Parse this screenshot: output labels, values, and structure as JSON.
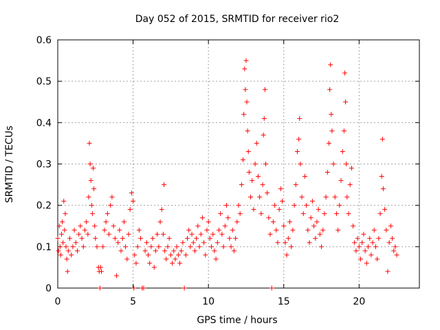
{
  "chart_data": {
    "type": "scatter",
    "title": "Day 052 of 2015, SRMTID for receiver rio2",
    "xlabel": "GPS time / hours",
    "ylabel": "SRMTID / TECUs",
    "xlim": [
      0,
      24
    ],
    "ylim": [
      0,
      0.6
    ],
    "x_ticks": [
      0,
      5,
      10,
      15,
      20
    ],
    "y_ticks": [
      0,
      0.1,
      0.2,
      0.3,
      0.4,
      0.5,
      0.6
    ],
    "x_tick_labels": [
      "0",
      "5",
      "10",
      "15",
      "20"
    ],
    "y_tick_labels": [
      "0",
      "0.1",
      "0.2",
      "0.3",
      "0.4",
      "0.5",
      "0.6"
    ],
    "grid": true,
    "marker": "+",
    "color": "#ff0000",
    "series": [
      {
        "name": "SRMTID",
        "points": [
          [
            0.0,
            0.12
          ],
          [
            0.05,
            0.09
          ],
          [
            0.1,
            0.15
          ],
          [
            0.15,
            0.1
          ],
          [
            0.2,
            0.08
          ],
          [
            0.25,
            0.13
          ],
          [
            0.3,
            0.16
          ],
          [
            0.35,
            0.11
          ],
          [
            0.4,
            0.21
          ],
          [
            0.45,
            0.14
          ],
          [
            0.5,
            0.18
          ],
          [
            0.55,
            0.1
          ],
          [
            0.6,
            0.07
          ],
          [
            0.65,
            0.04
          ],
          [
            0.7,
            0.09
          ],
          [
            0.8,
            0.12
          ],
          [
            0.9,
            0.08
          ],
          [
            1.0,
            0.1
          ],
          [
            1.1,
            0.14
          ],
          [
            1.2,
            0.11
          ],
          [
            1.3,
            0.09
          ],
          [
            1.4,
            0.13
          ],
          [
            1.5,
            0.15
          ],
          [
            1.6,
            0.12
          ],
          [
            1.7,
            0.1
          ],
          [
            1.8,
            0.14
          ],
          [
            1.9,
            0.16
          ],
          [
            2.0,
            0.13
          ],
          [
            2.05,
            0.22
          ],
          [
            2.1,
            0.35
          ],
          [
            2.15,
            0.3
          ],
          [
            2.2,
            0.26
          ],
          [
            2.25,
            0.2
          ],
          [
            2.3,
            0.18
          ],
          [
            2.35,
            0.29
          ],
          [
            2.4,
            0.24
          ],
          [
            2.45,
            0.15
          ],
          [
            2.5,
            0.12
          ],
          [
            2.6,
            0.1
          ],
          [
            2.7,
            0.05
          ],
          [
            2.75,
            0.04
          ],
          [
            2.8,
            0.0
          ],
          [
            2.85,
            0.05
          ],
          [
            2.9,
            0.04
          ],
          [
            3.0,
            0.1
          ],
          [
            3.1,
            0.14
          ],
          [
            3.2,
            0.16
          ],
          [
            3.3,
            0.18
          ],
          [
            3.4,
            0.13
          ],
          [
            3.5,
            0.2
          ],
          [
            3.6,
            0.22
          ],
          [
            3.7,
            0.15
          ],
          [
            3.8,
            0.12
          ],
          [
            3.9,
            0.03
          ],
          [
            4.0,
            0.11
          ],
          [
            4.1,
            0.14
          ],
          [
            4.2,
            0.09
          ],
          [
            4.3,
            0.12
          ],
          [
            4.4,
            0.16
          ],
          [
            4.5,
            0.1
          ],
          [
            4.6,
            0.07
          ],
          [
            4.7,
            0.13
          ],
          [
            4.8,
            0.19
          ],
          [
            4.9,
            0.23
          ],
          [
            5.0,
            0.21
          ],
          [
            5.05,
            0.0
          ],
          [
            5.1,
            0.08
          ],
          [
            5.2,
            0.06
          ],
          [
            5.3,
            0.1
          ],
          [
            5.4,
            0.14
          ],
          [
            5.5,
            0.12
          ],
          [
            5.6,
            0.0
          ],
          [
            5.7,
            0.0
          ],
          [
            5.8,
            0.09
          ],
          [
            5.9,
            0.11
          ],
          [
            6.0,
            0.08
          ],
          [
            6.1,
            0.06
          ],
          [
            6.2,
            0.1
          ],
          [
            6.3,
            0.12
          ],
          [
            6.4,
            0.05
          ],
          [
            6.5,
            0.09
          ],
          [
            6.6,
            0.13
          ],
          [
            6.7,
            0.1
          ],
          [
            6.8,
            0.16
          ],
          [
            6.9,
            0.19
          ],
          [
            7.0,
            0.13
          ],
          [
            7.05,
            0.25
          ],
          [
            7.1,
            0.09
          ],
          [
            7.2,
            0.07
          ],
          [
            7.3,
            0.1
          ],
          [
            7.4,
            0.12
          ],
          [
            7.5,
            0.08
          ],
          [
            7.6,
            0.06
          ],
          [
            7.7,
            0.09
          ],
          [
            7.8,
            0.07
          ],
          [
            7.9,
            0.1
          ],
          [
            8.0,
            0.08
          ],
          [
            8.1,
            0.06
          ],
          [
            8.2,
            0.09
          ],
          [
            8.3,
            0.11
          ],
          [
            8.4,
            0.0
          ],
          [
            8.5,
            0.08
          ],
          [
            8.6,
            0.12
          ],
          [
            8.7,
            0.14
          ],
          [
            8.8,
            0.1
          ],
          [
            8.9,
            0.13
          ],
          [
            9.0,
            0.11
          ],
          [
            9.1,
            0.09
          ],
          [
            9.2,
            0.12
          ],
          [
            9.3,
            0.15
          ],
          [
            9.4,
            0.1
          ],
          [
            9.5,
            0.13
          ],
          [
            9.6,
            0.17
          ],
          [
            9.7,
            0.11
          ],
          [
            9.8,
            0.08
          ],
          [
            9.9,
            0.14
          ],
          [
            10.0,
            0.16
          ],
          [
            10.1,
            0.12
          ],
          [
            10.2,
            0.1
          ],
          [
            10.3,
            0.13
          ],
          [
            10.4,
            0.09
          ],
          [
            10.5,
            0.07
          ],
          [
            10.6,
            0.11
          ],
          [
            10.7,
            0.14
          ],
          [
            10.8,
            0.18
          ],
          [
            10.9,
            0.13
          ],
          [
            11.0,
            0.1
          ],
          [
            11.1,
            0.15
          ],
          [
            11.2,
            0.2
          ],
          [
            11.3,
            0.17
          ],
          [
            11.4,
            0.12
          ],
          [
            11.5,
            0.1
          ],
          [
            11.6,
            0.14
          ],
          [
            11.7,
            0.09
          ],
          [
            11.8,
            0.12
          ],
          [
            11.9,
            0.16
          ],
          [
            12.0,
            0.2
          ],
          [
            12.1,
            0.18
          ],
          [
            12.2,
            0.25
          ],
          [
            12.3,
            0.31
          ],
          [
            12.35,
            0.42
          ],
          [
            12.4,
            0.53
          ],
          [
            12.45,
            0.48
          ],
          [
            12.5,
            0.55
          ],
          [
            12.55,
            0.45
          ],
          [
            12.6,
            0.38
          ],
          [
            12.65,
            0.33
          ],
          [
            12.7,
            0.28
          ],
          [
            12.8,
            0.22
          ],
          [
            12.9,
            0.26
          ],
          [
            13.0,
            0.19
          ],
          [
            13.1,
            0.3
          ],
          [
            13.2,
            0.35
          ],
          [
            13.3,
            0.27
          ],
          [
            13.4,
            0.22
          ],
          [
            13.5,
            0.18
          ],
          [
            13.6,
            0.25
          ],
          [
            13.65,
            0.37
          ],
          [
            13.7,
            0.41
          ],
          [
            13.75,
            0.48
          ],
          [
            13.8,
            0.3
          ],
          [
            13.9,
            0.23
          ],
          [
            14.0,
            0.17
          ],
          [
            14.1,
            0.13
          ],
          [
            14.2,
            0.0
          ],
          [
            14.3,
            0.16
          ],
          [
            14.4,
            0.2
          ],
          [
            14.5,
            0.14
          ],
          [
            14.6,
            0.11
          ],
          [
            14.7,
            0.19
          ],
          [
            14.8,
            0.24
          ],
          [
            14.9,
            0.21
          ],
          [
            15.0,
            0.15
          ],
          [
            15.1,
            0.11
          ],
          [
            15.2,
            0.08
          ],
          [
            15.3,
            0.12
          ],
          [
            15.4,
            0.16
          ],
          [
            15.5,
            0.1
          ],
          [
            15.6,
            0.14
          ],
          [
            15.7,
            0.2
          ],
          [
            15.8,
            0.25
          ],
          [
            15.9,
            0.33
          ],
          [
            16.0,
            0.36
          ],
          [
            16.05,
            0.41
          ],
          [
            16.1,
            0.3
          ],
          [
            16.2,
            0.22
          ],
          [
            16.3,
            0.18
          ],
          [
            16.4,
            0.27
          ],
          [
            16.5,
            0.2
          ],
          [
            16.6,
            0.14
          ],
          [
            16.7,
            0.11
          ],
          [
            16.8,
            0.17
          ],
          [
            16.9,
            0.21
          ],
          [
            17.0,
            0.15
          ],
          [
            17.1,
            0.12
          ],
          [
            17.2,
            0.16
          ],
          [
            17.3,
            0.19
          ],
          [
            17.4,
            0.13
          ],
          [
            17.5,
            0.1
          ],
          [
            17.6,
            0.14
          ],
          [
            17.7,
            0.18
          ],
          [
            17.8,
            0.22
          ],
          [
            17.9,
            0.28
          ],
          [
            18.0,
            0.35
          ],
          [
            18.05,
            0.48
          ],
          [
            18.1,
            0.54
          ],
          [
            18.15,
            0.42
          ],
          [
            18.2,
            0.38
          ],
          [
            18.3,
            0.3
          ],
          [
            18.4,
            0.22
          ],
          [
            18.5,
            0.18
          ],
          [
            18.6,
            0.14
          ],
          [
            18.7,
            0.2
          ],
          [
            18.8,
            0.26
          ],
          [
            18.9,
            0.33
          ],
          [
            19.0,
            0.38
          ],
          [
            19.05,
            0.52
          ],
          [
            19.1,
            0.45
          ],
          [
            19.15,
            0.3
          ],
          [
            19.2,
            0.22
          ],
          [
            19.3,
            0.18
          ],
          [
            19.4,
            0.25
          ],
          [
            19.5,
            0.29
          ],
          [
            19.6,
            0.15
          ],
          [
            19.7,
            0.11
          ],
          [
            19.8,
            0.09
          ],
          [
            19.9,
            0.12
          ],
          [
            20.0,
            0.1
          ],
          [
            20.1,
            0.07
          ],
          [
            20.2,
            0.11
          ],
          [
            20.3,
            0.13
          ],
          [
            20.4,
            0.09
          ],
          [
            20.5,
            0.06
          ],
          [
            20.6,
            0.1
          ],
          [
            20.7,
            0.12
          ],
          [
            20.8,
            0.08
          ],
          [
            20.9,
            0.11
          ],
          [
            21.0,
            0.14
          ],
          [
            21.1,
            0.1
          ],
          [
            21.2,
            0.07
          ],
          [
            21.3,
            0.12
          ],
          [
            21.4,
            0.18
          ],
          [
            21.5,
            0.27
          ],
          [
            21.55,
            0.36
          ],
          [
            21.6,
            0.24
          ],
          [
            21.7,
            0.19
          ],
          [
            21.8,
            0.14
          ],
          [
            21.9,
            0.04
          ],
          [
            22.0,
            0.11
          ],
          [
            22.1,
            0.15
          ],
          [
            22.2,
            0.12
          ],
          [
            22.3,
            0.09
          ],
          [
            22.4,
            0.1
          ],
          [
            22.5,
            0.08
          ]
        ]
      }
    ]
  }
}
